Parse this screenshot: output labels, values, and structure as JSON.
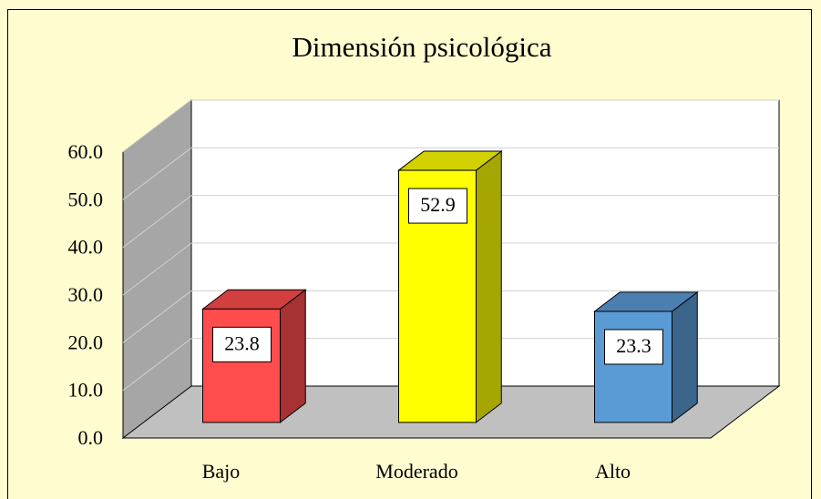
{
  "chart_data": {
    "type": "bar",
    "title": "Dimensión psicológica",
    "categories": [
      "Bajo",
      "Moderado",
      "Alto"
    ],
    "values": [
      23.8,
      52.9,
      23.3
    ],
    "colors": [
      "#ff4d4d",
      "#ffff00",
      "#5b9bd5"
    ],
    "ylim": [
      0,
      60
    ],
    "yticks": [
      {
        "value": 0,
        "label": "0.0"
      },
      {
        "value": 10,
        "label": "10.0"
      },
      {
        "value": 20,
        "label": "20.0"
      },
      {
        "value": 30,
        "label": "30.0"
      },
      {
        "value": 40,
        "label": "40.0"
      },
      {
        "value": 50,
        "label": "50.0"
      },
      {
        "value": 60,
        "label": "60.0"
      }
    ],
    "grid": true
  }
}
